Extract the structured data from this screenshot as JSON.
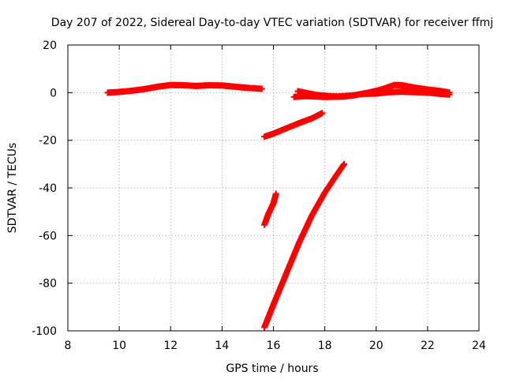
{
  "chart_data": {
    "type": "scatter",
    "title": "Day 207 of 2022, Sidereal Day-to-day VTEC variation (SDTVAR) for receiver ffmj",
    "xlabel": "GPS time / hours",
    "ylabel": "SDTVAR / TECUs",
    "xlim": [
      8,
      24
    ],
    "ylim": [
      -100,
      20
    ],
    "xticks": [
      8,
      10,
      12,
      14,
      16,
      18,
      20,
      22,
      24
    ],
    "yticks": [
      -100,
      -80,
      -60,
      -40,
      -20,
      0,
      20
    ],
    "grid": true,
    "marker": "plus",
    "series": [
      {
        "color": "#ff0000",
        "segments": [
          [
            [
              9.55,
              0.0
            ],
            [
              10.0,
              0.3
            ],
            [
              10.5,
              0.8
            ],
            [
              11.0,
              1.5
            ],
            [
              11.5,
              2.5
            ],
            [
              12.0,
              3.2
            ],
            [
              12.5,
              3.1
            ],
            [
              13.0,
              2.8
            ],
            [
              13.5,
              3.1
            ],
            [
              14.0,
              3.0
            ],
            [
              14.5,
              2.5
            ],
            [
              15.0,
              2.0
            ],
            [
              15.55,
              1.6
            ]
          ],
          [
            [
              15.65,
              -18.5
            ],
            [
              16.0,
              -17.2
            ],
            [
              16.5,
              -15.0
            ],
            [
              17.0,
              -12.8
            ],
            [
              17.5,
              -10.8
            ],
            [
              17.9,
              -8.6
            ]
          ],
          [
            [
              15.65,
              -55.5
            ],
            [
              15.8,
              -51.0
            ],
            [
              16.0,
              -46.5
            ],
            [
              16.1,
              -42.5
            ]
          ],
          [
            [
              15.65,
              -98.5
            ],
            [
              16.0,
              -89.0
            ],
            [
              16.5,
              -76.0
            ],
            [
              17.0,
              -63.0
            ],
            [
              17.5,
              -51.5
            ],
            [
              18.0,
              -42.0
            ],
            [
              18.4,
              -35.5
            ],
            [
              18.75,
              -30.0
            ]
          ],
          [
            [
              16.8,
              -1.8
            ],
            [
              17.2,
              -1.5
            ],
            [
              17.6,
              -1.6
            ],
            [
              18.0,
              -1.8
            ],
            [
              18.5,
              -1.7
            ],
            [
              19.0,
              -1.2
            ]
          ],
          [
            [
              16.95,
              0.6
            ],
            [
              17.3,
              -0.2
            ],
            [
              17.7,
              -1.0
            ],
            [
              18.2,
              -1.5
            ],
            [
              18.7,
              -1.7
            ],
            [
              19.2,
              -1.0
            ],
            [
              19.7,
              0.0
            ],
            [
              20.2,
              1.3
            ],
            [
              20.7,
              3.2
            ],
            [
              21.0,
              3.1
            ],
            [
              21.5,
              2.1
            ],
            [
              22.0,
              1.3
            ],
            [
              22.5,
              0.7
            ],
            [
              22.85,
              0.0
            ]
          ],
          [
            [
              19.5,
              -0.5
            ],
            [
              20.0,
              -0.4
            ],
            [
              20.5,
              0.2
            ],
            [
              21.0,
              0.4
            ],
            [
              21.5,
              0.2
            ],
            [
              22.0,
              0.0
            ],
            [
              22.5,
              -0.5
            ],
            [
              22.85,
              -0.8
            ]
          ]
        ]
      }
    ]
  }
}
